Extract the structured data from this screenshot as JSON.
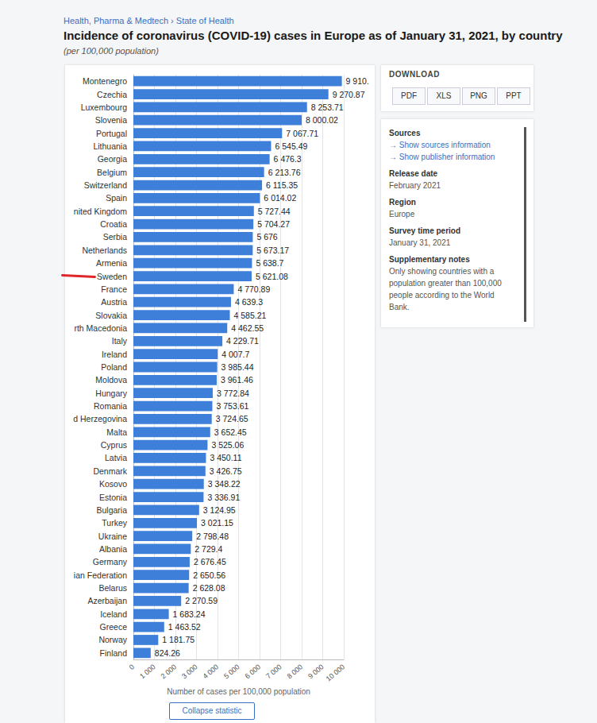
{
  "page": {
    "breadcrumb": "Health, Pharma & Medtech › State of Health",
    "download": {
      "heading": "DOWNLOAD",
      "buttons": [
        "PDF",
        "XLS",
        "PNG",
        "PPT"
      ]
    },
    "info": [
      {
        "heading": "Sources",
        "links": [
          "Show sources information",
          "Show publisher information"
        ]
      },
      {
        "heading": "Release date",
        "text": "February 2021"
      },
      {
        "heading": "Region",
        "text": "Europe"
      },
      {
        "heading": "Survey time period",
        "text": "January 31, 2021"
      },
      {
        "heading": "Supplementary notes",
        "text": "Only showing countries with a population greater than 100,000 people according to the World Bank."
      }
    ],
    "collapse_button": "Collapse statistic"
  },
  "chart_data": {
    "type": "bar",
    "orientation": "horizontal",
    "title": "Incidence of coronavirus (COVID-19) cases in Europe as of January 31, 2021, by country",
    "subtitle": "(per 100,000 population)",
    "x_label": "Number of cases per 100,000 population",
    "categories": [
      "Montenegro",
      "Czechia",
      "Luxembourg",
      "Slovenia",
      "Portugal",
      "Lithuania",
      "Georgia",
      "Belgium",
      "Switzerland",
      "Spain",
      "nited Kingdom",
      "Croatia",
      "Serbia",
      "Netherlands",
      "Armenia",
      "Sweden",
      "France",
      "Austria",
      "Slovakia",
      "rth Macedonia",
      "Italy",
      "Ireland",
      "Poland",
      "Moldova",
      "Hungary",
      "Romania",
      "d Herzegovina",
      "Malta",
      "Cyprus",
      "Latvia",
      "Denmark",
      "Kosovo",
      "Estonia",
      "Bulgaria",
      "Turkey",
      "Ukraine",
      "Albania",
      "Germany",
      "ian Federation",
      "Belarus",
      "Azerbaijan",
      "Iceland",
      "Greece",
      "Norway",
      "Finland"
    ],
    "values": [
      9910,
      9270.87,
      8253.71,
      8000.02,
      7067.71,
      6545.49,
      6476.3,
      6213.76,
      6115.35,
      6014.02,
      5727.44,
      5704.27,
      5676,
      5673.17,
      5638.7,
      5621.08,
      4770.89,
      4639.3,
      4585.21,
      4462.55,
      4229.71,
      4007.7,
      3985.44,
      3961.46,
      3772.84,
      3753.61,
      3724.65,
      3652.45,
      3525.06,
      3450.11,
      3426.75,
      3348.22,
      3336.91,
      3124.95,
      3021.15,
      2798.48,
      2729.4,
      2676.45,
      2650.56,
      2628.08,
      2270.59,
      1683.24,
      1463.52,
      1181.75,
      824.26
    ],
    "value_labels": [
      "9 910.",
      "9 270.87",
      "8 253.71",
      "8 000.02",
      "7 067.71",
      "6 545.49",
      "6 476.3",
      "6 213.76",
      "6 115.35",
      "6 014.02",
      "5 727.44",
      "5 704.27",
      "5 676",
      "5 673.17",
      "5 638.7",
      "5 621.08",
      "4 770.89",
      "4 639.3",
      "4 585.21",
      "4 462.55",
      "4 229.71",
      "4 007.7",
      "3 985.44",
      "3 961.46",
      "3 772.84",
      "3 753.61",
      "3 724.65",
      "3 652.45",
      "3 525.06",
      "3 450.11",
      "3 426.75",
      "3 348.22",
      "3 336.91",
      "3 124.95",
      "3 021.15",
      "2 798.48",
      "2 729.4",
      "2 676.45",
      "2 650.56",
      "2 628.08",
      "2 270.59",
      "1 683.24",
      "1 463.52",
      "1 181.75",
      "824.26"
    ],
    "color": "#3e7fd9",
    "xlim": [
      0,
      10000
    ],
    "xticks": [
      0,
      {
        "value": 1000,
        "label": "1 000"
      },
      {
        "value": 2000,
        "label": "2 000"
      },
      {
        "value": 3000,
        "label": "3 000"
      },
      {
        "value": 4000,
        "label": "4 000"
      },
      {
        "value": 5000,
        "label": "5 000"
      },
      {
        "value": 6000,
        "label": "6 000"
      },
      {
        "value": 7000,
        "label": "7 000"
      },
      {
        "value": 8000,
        "label": "8 000"
      },
      {
        "value": 9000,
        "label": "9 000"
      },
      {
        "value": 10000,
        "label": "10 000"
      }
    ],
    "grid": true,
    "data_labels": true
  }
}
